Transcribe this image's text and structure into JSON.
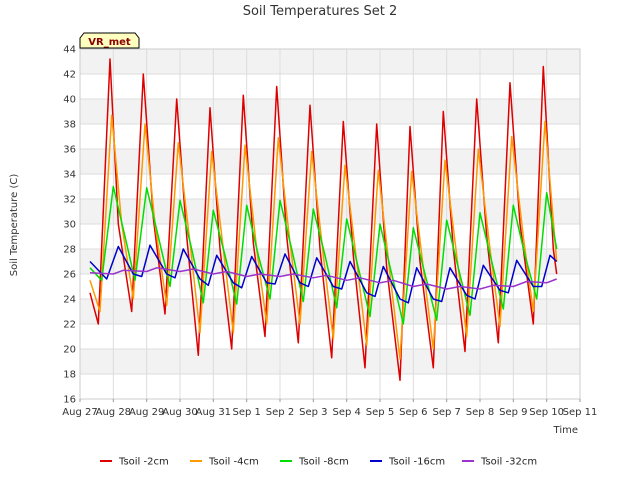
{
  "chart_data": {
    "type": "line",
    "title": "Soil Temperatures Set 2",
    "xlabel": "Time",
    "ylabel": "Soil Temperature (C)",
    "ylim": [
      16,
      44
    ],
    "yticks": [
      16,
      18,
      20,
      22,
      24,
      26,
      28,
      30,
      32,
      34,
      36,
      38,
      40,
      42,
      44
    ],
    "xlim": [
      0,
      15
    ],
    "xticks": [
      {
        "value": 0,
        "label": "Aug 27"
      },
      {
        "value": 1,
        "label": "Aug 28"
      },
      {
        "value": 2,
        "label": "Aug 29"
      },
      {
        "value": 3,
        "label": "Aug 30"
      },
      {
        "value": 4,
        "label": "Aug 31"
      },
      {
        "value": 5,
        "label": "Sep 1"
      },
      {
        "value": 6,
        "label": "Sep 2"
      },
      {
        "value": 7,
        "label": "Sep 3"
      },
      {
        "value": 8,
        "label": "Sep 4"
      },
      {
        "value": 9,
        "label": "Sep 5"
      },
      {
        "value": 10,
        "label": "Sep 6"
      },
      {
        "value": 11,
        "label": "Sep 7"
      },
      {
        "value": 12,
        "label": "Sep 8"
      },
      {
        "value": 13,
        "label": "Sep 9"
      },
      {
        "value": 14,
        "label": "Sep 10"
      },
      {
        "value": 15,
        "label": "Sep 11"
      }
    ],
    "grid": true,
    "legend_position": "bottom",
    "badge": "VR_met",
    "series": [
      {
        "name": "Tsoil -2cm",
        "color": "#dd0000",
        "points": [
          [
            0.3,
            24.5
          ],
          [
            0.55,
            22.0
          ],
          [
            0.9,
            43.2
          ],
          [
            1.15,
            30.0
          ],
          [
            1.55,
            23.0
          ],
          [
            1.9,
            42.0
          ],
          [
            2.2,
            30.5
          ],
          [
            2.55,
            22.8
          ],
          [
            2.9,
            40.0
          ],
          [
            3.2,
            29.0
          ],
          [
            3.55,
            19.5
          ],
          [
            3.9,
            39.3
          ],
          [
            4.2,
            28.0
          ],
          [
            4.55,
            20.0
          ],
          [
            4.9,
            40.3
          ],
          [
            5.2,
            28.5
          ],
          [
            5.55,
            21.0
          ],
          [
            5.9,
            41.0
          ],
          [
            6.2,
            29.0
          ],
          [
            6.55,
            20.5
          ],
          [
            6.9,
            39.5
          ],
          [
            7.2,
            28.0
          ],
          [
            7.55,
            19.3
          ],
          [
            7.9,
            38.2
          ],
          [
            8.2,
            27.5
          ],
          [
            8.55,
            18.5
          ],
          [
            8.9,
            38.0
          ],
          [
            9.2,
            26.5
          ],
          [
            9.6,
            17.5
          ],
          [
            9.9,
            37.8
          ],
          [
            10.2,
            27.0
          ],
          [
            10.6,
            18.5
          ],
          [
            10.9,
            39.0
          ],
          [
            11.2,
            28.0
          ],
          [
            11.55,
            19.8
          ],
          [
            11.9,
            40.0
          ],
          [
            12.2,
            29.0
          ],
          [
            12.55,
            20.5
          ],
          [
            12.9,
            41.3
          ],
          [
            13.2,
            30.0
          ],
          [
            13.6,
            22.0
          ],
          [
            13.9,
            42.6
          ],
          [
            14.2,
            28.0
          ],
          [
            14.3,
            26.0
          ]
        ]
      },
      {
        "name": "Tsoil -4cm",
        "color": "#ff9900",
        "points": [
          [
            0.3,
            25.5
          ],
          [
            0.6,
            23.0
          ],
          [
            0.95,
            38.7
          ],
          [
            1.25,
            30.0
          ],
          [
            1.6,
            24.0
          ],
          [
            1.95,
            38.0
          ],
          [
            2.25,
            30.0
          ],
          [
            2.6,
            23.5
          ],
          [
            2.95,
            36.5
          ],
          [
            3.3,
            28.5
          ],
          [
            3.6,
            21.3
          ],
          [
            3.95,
            35.8
          ],
          [
            4.3,
            28.0
          ],
          [
            4.6,
            21.3
          ],
          [
            4.95,
            36.3
          ],
          [
            5.3,
            28.0
          ],
          [
            5.6,
            22.0
          ],
          [
            5.95,
            36.9
          ],
          [
            6.3,
            28.5
          ],
          [
            6.6,
            22.0
          ],
          [
            6.95,
            35.8
          ],
          [
            7.3,
            27.5
          ],
          [
            7.6,
            20.8
          ],
          [
            7.95,
            34.7
          ],
          [
            8.3,
            27.0
          ],
          [
            8.6,
            20.3
          ],
          [
            8.95,
            34.3
          ],
          [
            9.3,
            26.0
          ],
          [
            9.6,
            19.2
          ],
          [
            9.95,
            34.2
          ],
          [
            10.3,
            26.5
          ],
          [
            10.6,
            20.0
          ],
          [
            10.95,
            35.1
          ],
          [
            11.3,
            27.5
          ],
          [
            11.6,
            21.0
          ],
          [
            11.95,
            36.0
          ],
          [
            12.3,
            28.0
          ],
          [
            12.6,
            21.8
          ],
          [
            12.95,
            37.0
          ],
          [
            13.3,
            29.0
          ],
          [
            13.6,
            23.0
          ],
          [
            13.95,
            38.2
          ],
          [
            14.3,
            27.0
          ]
        ]
      },
      {
        "name": "Tsoil -8cm",
        "color": "#00dd00",
        "points": [
          [
            0.3,
            26.5
          ],
          [
            0.65,
            25.5
          ],
          [
            1.0,
            33.0
          ],
          [
            1.35,
            29.0
          ],
          [
            1.65,
            25.5
          ],
          [
            2.0,
            32.9
          ],
          [
            2.35,
            29.0
          ],
          [
            2.7,
            25.0
          ],
          [
            3.0,
            31.9
          ],
          [
            3.35,
            28.0
          ],
          [
            3.7,
            23.7
          ],
          [
            4.0,
            31.1
          ],
          [
            4.35,
            27.5
          ],
          [
            4.7,
            23.6
          ],
          [
            5.0,
            31.5
          ],
          [
            5.35,
            27.5
          ],
          [
            5.7,
            24.0
          ],
          [
            6.0,
            31.9
          ],
          [
            6.35,
            28.0
          ],
          [
            6.7,
            23.8
          ],
          [
            7.0,
            31.2
          ],
          [
            7.35,
            27.5
          ],
          [
            7.7,
            23.3
          ],
          [
            8.0,
            30.4
          ],
          [
            8.35,
            26.5
          ],
          [
            8.7,
            22.6
          ],
          [
            9.0,
            30.0
          ],
          [
            9.35,
            26.0
          ],
          [
            9.7,
            22.0
          ],
          [
            10.0,
            29.7
          ],
          [
            10.35,
            26.0
          ],
          [
            10.7,
            22.3
          ],
          [
            11.0,
            30.3
          ],
          [
            11.35,
            26.5
          ],
          [
            11.7,
            22.7
          ],
          [
            12.0,
            30.9
          ],
          [
            12.35,
            27.0
          ],
          [
            12.7,
            23.2
          ],
          [
            13.0,
            31.5
          ],
          [
            13.35,
            27.5
          ],
          [
            13.7,
            24.0
          ],
          [
            14.0,
            32.5
          ],
          [
            14.3,
            28.0
          ]
        ]
      },
      {
        "name": "Tsoil -16cm",
        "color": "#0000cc",
        "points": [
          [
            0.3,
            27.0
          ],
          [
            0.8,
            25.6
          ],
          [
            1.15,
            28.2
          ],
          [
            1.6,
            26.0
          ],
          [
            1.85,
            25.8
          ],
          [
            2.1,
            28.3
          ],
          [
            2.6,
            26.0
          ],
          [
            2.85,
            25.7
          ],
          [
            3.1,
            28.0
          ],
          [
            3.6,
            25.6
          ],
          [
            3.85,
            25.1
          ],
          [
            4.1,
            27.5
          ],
          [
            4.6,
            25.3
          ],
          [
            4.85,
            24.9
          ],
          [
            5.15,
            27.4
          ],
          [
            5.6,
            25.3
          ],
          [
            5.85,
            25.2
          ],
          [
            6.15,
            27.6
          ],
          [
            6.6,
            25.3
          ],
          [
            6.85,
            25.0
          ],
          [
            7.1,
            27.3
          ],
          [
            7.6,
            25.0
          ],
          [
            7.85,
            24.8
          ],
          [
            8.1,
            27.0
          ],
          [
            8.6,
            24.5
          ],
          [
            8.85,
            24.2
          ],
          [
            9.1,
            26.6
          ],
          [
            9.6,
            24.0
          ],
          [
            9.85,
            23.7
          ],
          [
            10.1,
            26.5
          ],
          [
            10.6,
            24.0
          ],
          [
            10.85,
            23.8
          ],
          [
            11.1,
            26.5
          ],
          [
            11.6,
            24.3
          ],
          [
            11.85,
            24.0
          ],
          [
            12.1,
            26.7
          ],
          [
            12.6,
            24.7
          ],
          [
            12.85,
            24.5
          ],
          [
            13.1,
            27.1
          ],
          [
            13.6,
            25.0
          ],
          [
            13.85,
            25.0
          ],
          [
            14.1,
            27.5
          ],
          [
            14.3,
            27.0
          ]
        ]
      },
      {
        "name": "Tsoil -32cm",
        "color": "#9933cc",
        "points": [
          [
            0.3,
            26.1
          ],
          [
            1.0,
            26.0
          ],
          [
            1.3,
            26.3
          ],
          [
            2.0,
            26.2
          ],
          [
            2.3,
            26.5
          ],
          [
            3.0,
            26.2
          ],
          [
            3.4,
            26.4
          ],
          [
            4.0,
            26.0
          ],
          [
            4.4,
            26.2
          ],
          [
            5.0,
            25.8
          ],
          [
            5.4,
            26.0
          ],
          [
            6.0,
            25.8
          ],
          [
            6.4,
            26.0
          ],
          [
            7.0,
            25.7
          ],
          [
            7.4,
            25.9
          ],
          [
            8.0,
            25.5
          ],
          [
            8.4,
            25.7
          ],
          [
            9.0,
            25.3
          ],
          [
            9.4,
            25.5
          ],
          [
            10.0,
            25.0
          ],
          [
            10.4,
            25.2
          ],
          [
            11.0,
            24.8
          ],
          [
            11.4,
            25.0
          ],
          [
            12.0,
            24.8
          ],
          [
            12.4,
            25.1
          ],
          [
            13.0,
            25.0
          ],
          [
            13.4,
            25.4
          ],
          [
            14.0,
            25.3
          ],
          [
            14.3,
            25.6
          ]
        ]
      }
    ]
  }
}
